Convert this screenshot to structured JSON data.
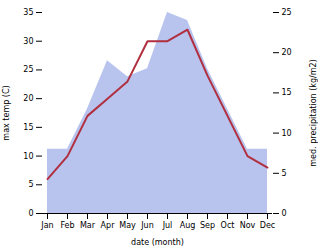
{
  "chart_data": {
    "type": "line",
    "categories": [
      "Jan",
      "Feb",
      "Mar",
      "Apr",
      "May",
      "Jun",
      "Jul",
      "Aug",
      "Sep",
      "Oct",
      "Nov",
      "Dec"
    ],
    "xlabel": "date (month)",
    "ylabel": "max temp (C)",
    "y2label": "med. precipitation (kg/m2)",
    "ylim": [
      0,
      35
    ],
    "yticks": [
      0,
      5,
      10,
      15,
      20,
      25,
      30,
      35
    ],
    "y2lim": [
      0,
      25
    ],
    "y2ticks": [
      0,
      5,
      10,
      15,
      20,
      25
    ],
    "series": [
      {
        "type": "area",
        "axis": "y2",
        "color": "#b8c4ee",
        "values": [
          8,
          8,
          13,
          19,
          17,
          18,
          25,
          24,
          18,
          13,
          8,
          8
        ]
      },
      {
        "type": "line",
        "color": "#b03040",
        "values": [
          6,
          10,
          17,
          20,
          23,
          30,
          30,
          32,
          24,
          17,
          10,
          8
        ]
      }
    ]
  }
}
